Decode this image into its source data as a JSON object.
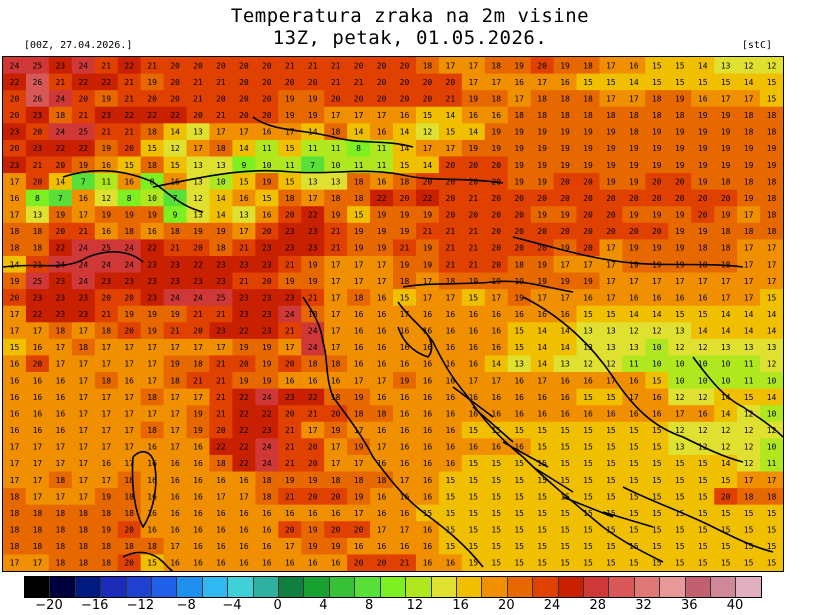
{
  "header": {
    "title_line1": "Temperatura zraka na 2m visine",
    "title_line2": "13Z, petak, 01.05.2026.",
    "run_label": "[00Z, 27.04.2026.]",
    "unit_label": "[stC]"
  },
  "map": {
    "variable": "2m air temperature",
    "region": "Adriatic / Croatia / Italy",
    "grid_rows": [
      "24 25 23 24 21 22 21 20 20 20 20 20 21 21 21 20 20 20 18 17 17 18 19 20 19 18 17 16 15 15 14 13 12 12",
      "22 26 21 22 22 21 19 20 21 21 20 20 20 20 21 21 20 20 20 20 17 17 16 17 16 15 15 14 15 15 15 15 14 15",
      "20 26 24 20 19 21 20 20 21 20 20 20 19 19 20 20 20 20 20 21 19 18 17 18 18 18 17 17 18 19 16 17 17 15",
      "20 23 18 21 23 22 22 22 20 21 20 20 19 19 17 17 17 16 15 14 16 16 18 18 18 18 18 18 18 18 19 19 18 18",
      "23 20 24 25 21 21 18 14 13 17 17 16 17 14 18 14 16 14 12 15 14 19 19 19 19 19 19 18 19 19 19 19 18 18",
      "20 23 22 22 19 20 15 12 17 18 14 11 15 11 11 8 11 14 17 17 19 19 19 19 19 19 19 19 19 19 19 19 19 19",
      "23 21 20 19 16 15 18 15 13 13 9 10 11 7 10 11 11 15 14 20 20 20 19 19 19 19 19 19 19 19 19 19 19 19",
      "17 20 14 7 11 16 8 16 13 10 15 19 15 13 13 18 16 18 20 20 20 20 19 19 20 20 19 19 20 20 19 18 18 18",
      "16 8 7 16 12 8 10 7 12 14 16 15 18 17 18 18 22 20 22 20 21 20 20 20 20 20 20 20 20 20 20 20 19 18",
      "17 13 19 17 19 19 19 9 13 14 13 16 20 22 19 15 19 19 19 20 20 20 20 19 19 20 20 19 19 19 20 19 17 18",
      "18 18 20 21 16 18 16 18 19 19 17 20 23 23 21 19 19 19 21 21 21 20 20 20 20 20 20 20 20 19 19 18 18 18",
      "18 18 22 24 25 24 22 21 20 18 21 23 23 23 21 19 19 21 19 21 21 20 20 20 19 20 17 19 19 19 18 18 17 17",
      "14 21 24 24 24 24 23 23 22 23 23 23 21 19 17 17 17 19 19 21 21 20 18 19 17 17 17 19 19 19 18 18 17 17",
      "19 25 23 24 23 23 23 23 23 23 21 20 19 19 17 17 17 18 17 18 19 19 19 19 19 19 17 17 17 17 17 17 17 17",
      "20 23 23 23 20 20 23 24 24 25 23 23 23 21 17 18 16 15 17 17 15 17 19 17 17 16 17 16 16 16 16 17 17 15",
      "17 22 23 23 21 19 19 19 21 21 23 23 24 18 17 16 16 17 16 16 16 16 16 16 16 15 15 14 14 15 15 14 14 14",
      "17 17 18 17 18 20 19 21 20 23 22 23 21 24 17 16 16 16 16 16 16 16 15 14 14 13 13 12 12 13 14 14 14 14",
      "15 16 17 18 17 17 17 17 17 17 19 19 17 24 17 16 16 16 16 16 16 16 15 14 14 13 13 13 10 12 12 13 13 13",
      "16 20 17 17 17 17 17 19 18 21 20 19 20 18 18 16 16 16 16 16 16 14 13 14 13 12 12 11 10 10 10 10 11 12",
      "16 16 16 17 18 16 17 18 21 21 19 19 16 16 16 17 17 19 16 16 17 17 16 17 16 16 17 16 15 10 10 10 11 10",
      "16 16 16 17 17 17 18 17 17 21 22 24 23 22 18 19 16 16 16 16 16 16 16 16 16 15 15 17 16 12 12 14 15 14",
      "16 16 16 17 17 17 17 17 19 21 22 22 20 21 20 18 18 16 16 16 16 16 16 16 16 16 16 16 16 17 16 14 12 10",
      "16 16 16 17 17 17 18 17 19 20 22 23 21 17 19 17 16 16 16 16 15 15 15 15 15 15 15 15 15 12 12 12 12 12",
      "17 17 17 17 17 17 16 17 16 22 22 24 21 20 17 19 17 16 16 16 16 16 16 15 15 15 15 15 15 13 12 12 12 10",
      "17 17 17 17 16 17 16 16 16 18 22 24 21 20 17 17 16 16 16 16 15 15 15 15 15 15 15 15 15 15 15 14 12 11",
      "17 17 18 17 17 18 16 16 16 16 16 18 19 19 18 18 18 17 16 15 15 15 15 15 15 15 15 15 15 15 15 15 17 17",
      "18 17 17 17 19 18 16 16 16 17 17 18 21 20 20 19 16 16 16 15 15 15 15 15 15 15 15 15 15 15 15 20 18 18",
      "18 18 18 18 18 18 16 16 16 16 16 16 16 16 16 17 16 16 15 15 15 15 15 15 15 15 15 15 15 15 15 15 15 15",
      "18 18 18 18 19 20 16 16 16 16 16 16 20 19 20 20 17 17 16 15 15 15 15 15 15 15 15 15 15 15 15 15 15 15",
      "18 18 18 18 18 18 18 17 16 16 16 16 17 19 19 16 16 16 16 15 15 15 15 15 15 15 15 15 15 15 15 15 15 15",
      "17 17 18 18 18 20 15 16 16 16 16 16 16 16 16 20 20 21 16 16 15 15 15 15 15 15 15 15 15 15 15 15 15 15"
    ]
  },
  "legend": {
    "colors": [
      "#000000",
      "#00003f",
      "#001a80",
      "#1c2cb8",
      "#2040d0",
      "#2060e8",
      "#2090f0",
      "#30b8f0",
      "#40d0d8",
      "#30b0a0",
      "#108040",
      "#18a030",
      "#38c038",
      "#58e038",
      "#7cf020",
      "#b0e820",
      "#e0e030",
      "#f0c000",
      "#f09000",
      "#e86800",
      "#e04000",
      "#c82000",
      "#d03838",
      "#d85858",
      "#e07878",
      "#e89898",
      "#c06070",
      "#d08898",
      "#e0b0c0"
    ],
    "ticks": [
      "−20",
      "−16",
      "−12",
      "−8",
      "−4",
      "0",
      "4",
      "8",
      "12",
      "16",
      "20",
      "24",
      "28",
      "32",
      "36",
      "40"
    ]
  }
}
